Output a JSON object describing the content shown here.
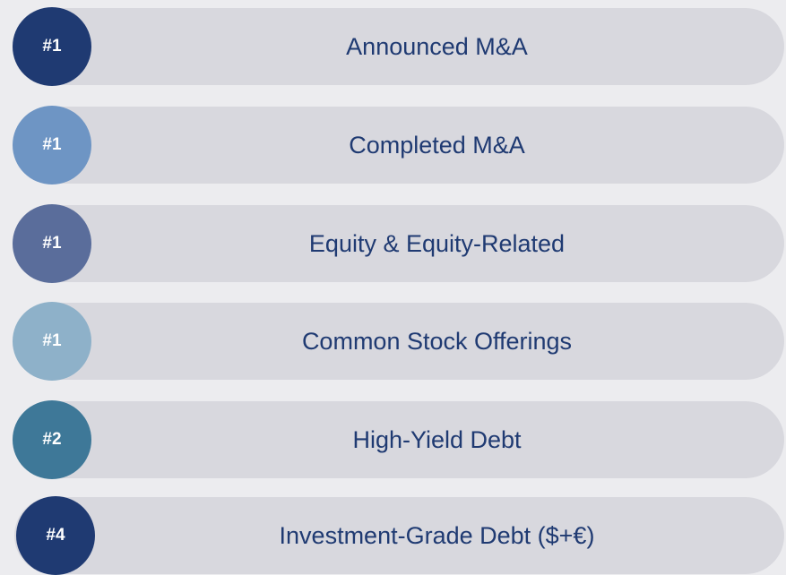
{
  "rows": [
    {
      "rank": "#1",
      "label": "Announced M&A",
      "color": "#1f3a72"
    },
    {
      "rank": "#1",
      "label": "Completed M&A",
      "color": "#6e95c4"
    },
    {
      "rank": "#1",
      "label": "Equity & Equity-Related",
      "color": "#5a6d9b"
    },
    {
      "rank": "#1",
      "label": "Common Stock Offerings",
      "color": "#8eb1c9"
    },
    {
      "rank": "#2",
      "label": "High-Yield Debt",
      "color": "#3e7898"
    },
    {
      "rank": "#4",
      "label": "Investment-Grade Debt ($+€)",
      "color": "#1f3a72"
    }
  ]
}
